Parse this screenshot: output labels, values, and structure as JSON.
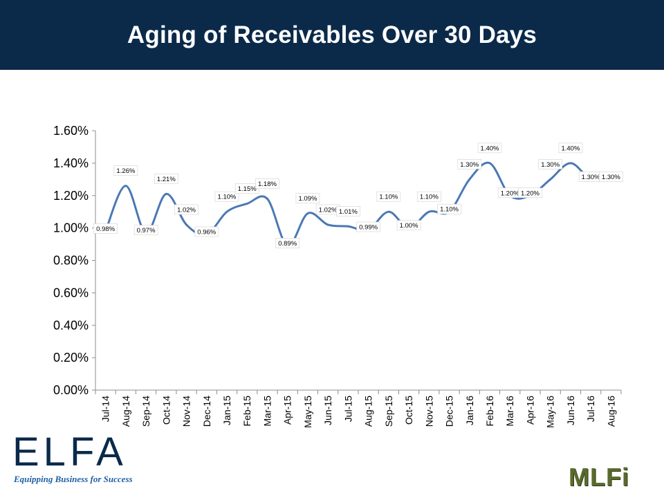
{
  "header": {
    "title": "Aging of Receivables Over 30 Days"
  },
  "colors": {
    "title_bar": "#0b2a4a",
    "series_line": "#4a78b5",
    "logo_navy": "#0b2a4a",
    "tagline_blue": "#1f5fa5",
    "mlfi_green": "#5a6b2f"
  },
  "logos": {
    "elfa": {
      "name": "ELFA",
      "tagline": "Equipping Business for Success"
    },
    "mlfi": {
      "name": "MLFi"
    }
  },
  "chart_data": {
    "type": "line",
    "title": "Aging of Receivables Over 30 Days",
    "xlabel": "",
    "ylabel": "",
    "ylim": [
      0,
      1.6
    ],
    "y_ticks": [
      "0.00%",
      "0.20%",
      "0.40%",
      "0.60%",
      "0.80%",
      "1.00%",
      "1.20%",
      "1.40%",
      "1.60%"
    ],
    "y_tick_values": [
      0,
      0.2,
      0.4,
      0.6,
      0.8,
      1.0,
      1.2,
      1.4,
      1.6
    ],
    "grid": false,
    "legend": "none",
    "smooth": true,
    "categories": [
      "Jul-14",
      "Aug-14",
      "Sep-14",
      "Oct-14",
      "Nov-14",
      "Dec-14",
      "Jan-15",
      "Feb-15",
      "Mar-15",
      "Apr-15",
      "May-15",
      "Jun-15",
      "Jul-15",
      "Aug-15",
      "Sep-15",
      "Oct-15",
      "Nov-15",
      "Dec-15",
      "Jan-16",
      "Feb-16",
      "Mar-16",
      "Apr-16",
      "May-16",
      "Jun-16",
      "Jul-16",
      "Aug-16"
    ],
    "series": [
      {
        "values": [
          0.98,
          1.26,
          0.97,
          1.21,
          1.02,
          0.96,
          1.1,
          1.15,
          1.18,
          0.89,
          1.09,
          1.02,
          1.01,
          0.99,
          1.1,
          1.0,
          1.1,
          1.1,
          1.3,
          1.4,
          1.2,
          1.2,
          1.3,
          1.4,
          1.3,
          1.3
        ],
        "data_labels": [
          "0.98%",
          "1.26%",
          "0.97%",
          "1.21%",
          "1.02%",
          "0.96%",
          "1.10%",
          "1.15%",
          "1.18%",
          "0.89%",
          "1.09%",
          "1.02%",
          "1.01%",
          "0.99%",
          "1.10%",
          "1.00%",
          "1.10%",
          "1.10%",
          "1.30%",
          "1.40%",
          "1.20%",
          "1.20%",
          "1.30%",
          "1.40%",
          "1.30%",
          "1.30%"
        ]
      }
    ]
  }
}
